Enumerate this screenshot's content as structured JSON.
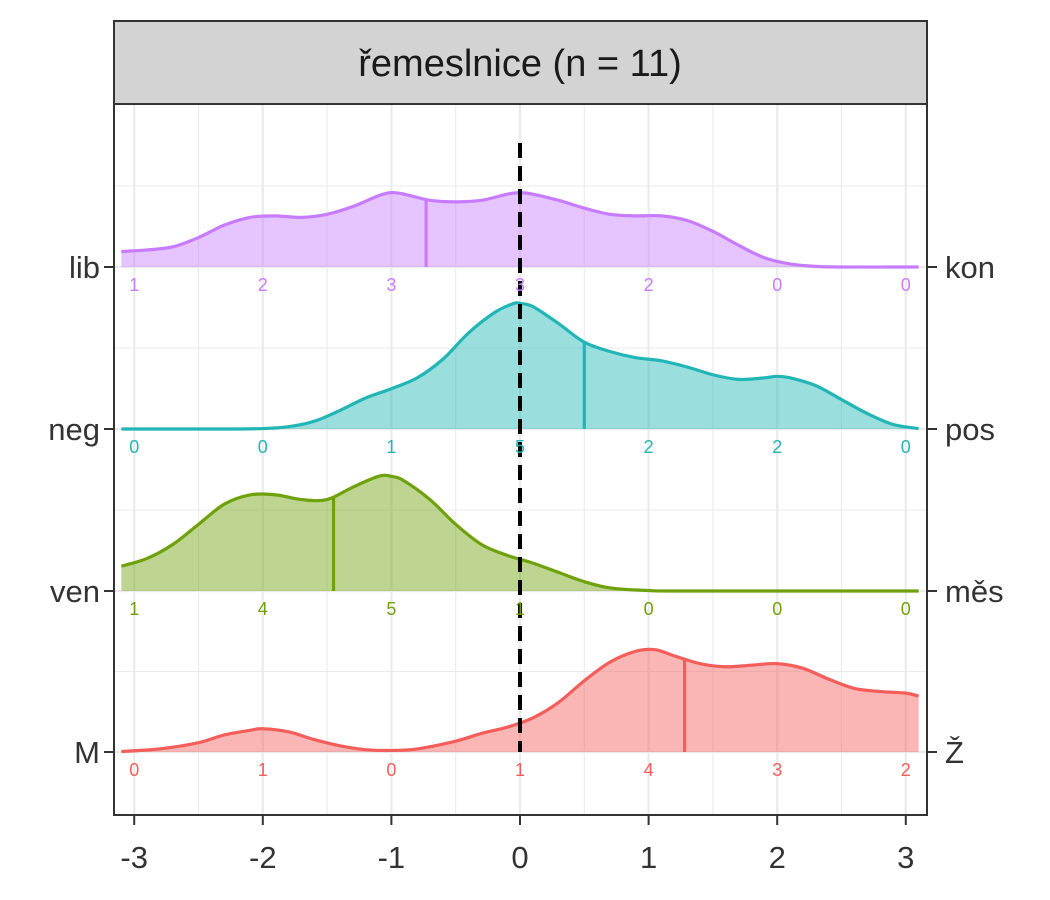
{
  "chart_data": {
    "type": "ridgeline",
    "title": "řemeslnice (n = 11)",
    "xlabel": "",
    "ylabel": "",
    "xlim": [
      -3.1,
      3.1
    ],
    "x_ticks": [
      -3,
      -2,
      -1,
      0,
      1,
      2,
      3
    ],
    "x_tick_labels": [
      "-3",
      "-2",
      "-1",
      "0",
      "1",
      "2",
      "3"
    ],
    "reference_line_x": 0,
    "count_positions": [
      -3,
      -2,
      -1,
      0,
      1,
      2,
      3
    ],
    "grid": true,
    "series": [
      {
        "left_label": "lib",
        "right_label": "kon",
        "color": "#C77CFF",
        "counts": [
          1,
          2,
          3,
          3,
          2,
          0,
          0
        ],
        "mean": -0.73,
        "density": [
          [
            -3.1,
            0.1
          ],
          [
            -2.9,
            0.11
          ],
          [
            -2.7,
            0.13
          ],
          [
            -2.5,
            0.19
          ],
          [
            -2.3,
            0.27
          ],
          [
            -2.1,
            0.32
          ],
          [
            -1.9,
            0.33
          ],
          [
            -1.7,
            0.32
          ],
          [
            -1.5,
            0.34
          ],
          [
            -1.3,
            0.39
          ],
          [
            -1.1,
            0.46
          ],
          [
            -1.0,
            0.48
          ],
          [
            -0.9,
            0.47
          ],
          [
            -0.7,
            0.43
          ],
          [
            -0.5,
            0.42
          ],
          [
            -0.3,
            0.43
          ],
          [
            -0.1,
            0.47
          ],
          [
            0.0,
            0.48
          ],
          [
            0.1,
            0.47
          ],
          [
            0.3,
            0.43
          ],
          [
            0.5,
            0.38
          ],
          [
            0.7,
            0.34
          ],
          [
            0.9,
            0.33
          ],
          [
            1.1,
            0.33
          ],
          [
            1.3,
            0.3
          ],
          [
            1.5,
            0.23
          ],
          [
            1.7,
            0.14
          ],
          [
            1.9,
            0.06
          ],
          [
            2.1,
            0.02
          ],
          [
            2.3,
            0.004
          ],
          [
            2.5,
            0
          ],
          [
            3.1,
            0
          ]
        ]
      },
      {
        "left_label": "neg",
        "right_label": "pos",
        "color": "#22B5B5",
        "counts": [
          0,
          0,
          1,
          5,
          2,
          2,
          0
        ],
        "mean": 0.5,
        "density": [
          [
            -3.1,
            0
          ],
          [
            -2.3,
            0
          ],
          [
            -2.0,
            0.003
          ],
          [
            -1.8,
            0.015
          ],
          [
            -1.6,
            0.05
          ],
          [
            -1.4,
            0.12
          ],
          [
            -1.2,
            0.2
          ],
          [
            -1.0,
            0.26
          ],
          [
            -0.8,
            0.33
          ],
          [
            -0.6,
            0.45
          ],
          [
            -0.4,
            0.62
          ],
          [
            -0.2,
            0.75
          ],
          [
            -0.05,
            0.81
          ],
          [
            0.0,
            0.81
          ],
          [
            0.1,
            0.79
          ],
          [
            0.3,
            0.68
          ],
          [
            0.5,
            0.56
          ],
          [
            0.7,
            0.5
          ],
          [
            0.9,
            0.46
          ],
          [
            1.1,
            0.44
          ],
          [
            1.3,
            0.4
          ],
          [
            1.5,
            0.35
          ],
          [
            1.7,
            0.32
          ],
          [
            1.9,
            0.33
          ],
          [
            2.0,
            0.34
          ],
          [
            2.1,
            0.33
          ],
          [
            2.3,
            0.28
          ],
          [
            2.5,
            0.19
          ],
          [
            2.7,
            0.1
          ],
          [
            2.9,
            0.03
          ],
          [
            3.1,
            0.003
          ]
        ]
      },
      {
        "left_label": "ven",
        "right_label": "měs",
        "color": "#6FA10C",
        "counts": [
          1,
          4,
          5,
          1,
          0,
          0,
          0
        ],
        "mean": -1.45,
        "density": [
          [
            -3.1,
            0.16
          ],
          [
            -2.9,
            0.21
          ],
          [
            -2.7,
            0.3
          ],
          [
            -2.5,
            0.43
          ],
          [
            -2.3,
            0.56
          ],
          [
            -2.1,
            0.62
          ],
          [
            -1.9,
            0.62
          ],
          [
            -1.7,
            0.59
          ],
          [
            -1.5,
            0.59
          ],
          [
            -1.3,
            0.67
          ],
          [
            -1.1,
            0.74
          ],
          [
            -1.0,
            0.74
          ],
          [
            -0.9,
            0.71
          ],
          [
            -0.7,
            0.59
          ],
          [
            -0.5,
            0.43
          ],
          [
            -0.3,
            0.3
          ],
          [
            -0.1,
            0.23
          ],
          [
            0.1,
            0.18
          ],
          [
            0.3,
            0.12
          ],
          [
            0.5,
            0.06
          ],
          [
            0.7,
            0.02
          ],
          [
            1.0,
            0.003
          ],
          [
            1.3,
            0
          ],
          [
            3.1,
            0
          ]
        ]
      },
      {
        "left_label": "M",
        "right_label": "Ž",
        "color": "#F35E5A",
        "counts": [
          0,
          1,
          0,
          1,
          4,
          3,
          2
        ],
        "mean": 1.28,
        "density": [
          [
            -3.1,
            0.003
          ],
          [
            -2.8,
            0.02
          ],
          [
            -2.5,
            0.06
          ],
          [
            -2.3,
            0.11
          ],
          [
            -2.1,
            0.14
          ],
          [
            -2.0,
            0.15
          ],
          [
            -1.8,
            0.13
          ],
          [
            -1.6,
            0.08
          ],
          [
            -1.4,
            0.04
          ],
          [
            -1.2,
            0.015
          ],
          [
            -1.0,
            0.01
          ],
          [
            -0.8,
            0.02
          ],
          [
            -0.5,
            0.07
          ],
          [
            -0.3,
            0.12
          ],
          [
            -0.1,
            0.16
          ],
          [
            0.1,
            0.22
          ],
          [
            0.3,
            0.32
          ],
          [
            0.5,
            0.46
          ],
          [
            0.7,
            0.58
          ],
          [
            0.9,
            0.65
          ],
          [
            1.05,
            0.66
          ],
          [
            1.2,
            0.62
          ],
          [
            1.4,
            0.57
          ],
          [
            1.6,
            0.55
          ],
          [
            1.8,
            0.56
          ],
          [
            2.0,
            0.57
          ],
          [
            2.2,
            0.54
          ],
          [
            2.4,
            0.47
          ],
          [
            2.6,
            0.41
          ],
          [
            2.8,
            0.39
          ],
          [
            3.0,
            0.38
          ],
          [
            3.1,
            0.36
          ]
        ]
      }
    ]
  }
}
